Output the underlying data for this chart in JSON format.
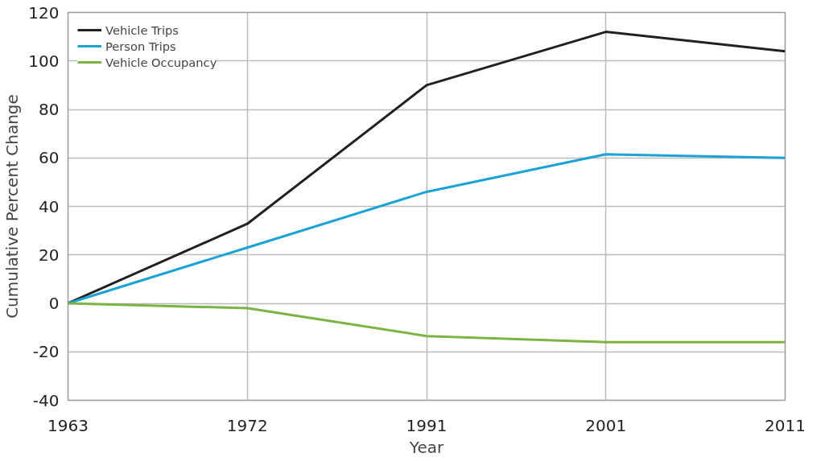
{
  "chart_data": {
    "type": "line",
    "xlabel": "Year",
    "ylabel": "Cumulative Percent Change",
    "categories": [
      "1963",
      "1972",
      "1991",
      "2001",
      "2011"
    ],
    "series": [
      {
        "name": "Vehicle Trips",
        "color": "#231f20",
        "values": [
          0,
          32.8,
          90,
          112,
          104
        ]
      },
      {
        "name": "Person Trips",
        "color": "#1ba3d6",
        "values": [
          0,
          23,
          46,
          61.5,
          60
        ]
      },
      {
        "name": "Vehicle Occupancy",
        "color": "#7cb342",
        "values": [
          0,
          -2,
          -13.5,
          -16,
          -16
        ]
      }
    ],
    "ylim": [
      -40,
      120
    ],
    "yticks": [
      -40,
      -20,
      0,
      20,
      40,
      60,
      80,
      100,
      120
    ],
    "grid": true,
    "legend": "top left",
    "marker": "none",
    "line_style": "solid"
  }
}
